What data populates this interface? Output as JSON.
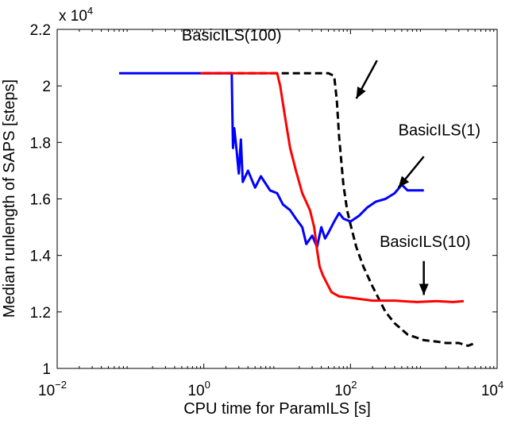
{
  "chart_data": {
    "type": "line",
    "xlabel": "CPU time for ParamILS [s]",
    "ylabel": "Median runlength of SAPS [steps]",
    "xscale": "log",
    "xlim": [
      0.01,
      10000
    ],
    "ylim": [
      10000,
      22000
    ],
    "grid": false,
    "x_tick_labels": [
      {
        "base": "10",
        "exp": "−2"
      },
      {
        "base": "10",
        "exp": "0"
      },
      {
        "base": "10",
        "exp": "2"
      },
      {
        "base": "10",
        "exp": "4"
      }
    ],
    "x_tick_values": [
      0.01,
      1,
      100,
      10000
    ],
    "y_tick_labels": [
      "1",
      "1.2",
      "1.4",
      "1.6",
      "1.8",
      "2",
      "2.2"
    ],
    "y_tick_values": [
      10000,
      12000,
      14000,
      16000,
      18000,
      20000,
      22000
    ],
    "y_multiplier": {
      "base": "x 10",
      "exp": "4"
    },
    "series": [
      {
        "name": "BasicILS(100)",
        "color": "#000000",
        "style": "dashed",
        "points": [
          [
            1,
            20450
          ],
          [
            9,
            20450
          ],
          [
            50,
            20450
          ],
          [
            60,
            20350
          ],
          [
            65,
            19500
          ],
          [
            70,
            18200
          ],
          [
            80,
            16500
          ],
          [
            90,
            15600
          ],
          [
            100,
            15100
          ],
          [
            120,
            14300
          ],
          [
            150,
            13600
          ],
          [
            200,
            12900
          ],
          [
            300,
            12000
          ],
          [
            400,
            11600
          ],
          [
            600,
            11200
          ],
          [
            1000,
            11000
          ],
          [
            1500,
            10950
          ],
          [
            2000,
            10900
          ],
          [
            3000,
            10900
          ],
          [
            4000,
            10800
          ],
          [
            5000,
            10900
          ]
        ]
      },
      {
        "name": "BasicILS(1)",
        "color": "#0000ff",
        "style": "solid",
        "points": [
          [
            0.07,
            20450
          ],
          [
            2.4,
            20450
          ],
          [
            2.45,
            19000
          ],
          [
            2.5,
            17800
          ],
          [
            2.6,
            18500
          ],
          [
            2.8,
            17700
          ],
          [
            3.0,
            16900
          ],
          [
            3.2,
            18100
          ],
          [
            3.4,
            16600
          ],
          [
            4,
            17000
          ],
          [
            5,
            16400
          ],
          [
            6,
            16800
          ],
          [
            8,
            16300
          ],
          [
            10,
            16200
          ],
          [
            12,
            15800
          ],
          [
            15,
            15600
          ],
          [
            18,
            15300
          ],
          [
            22,
            15000
          ],
          [
            25,
            14400
          ],
          [
            30,
            14700
          ],
          [
            35,
            14300
          ],
          [
            40,
            15000
          ],
          [
            45,
            14600
          ],
          [
            50,
            14800
          ],
          [
            60,
            15200
          ],
          [
            70,
            15500
          ],
          [
            80,
            15300
          ],
          [
            100,
            15200
          ],
          [
            130,
            15400
          ],
          [
            170,
            15700
          ],
          [
            220,
            15900
          ],
          [
            300,
            16000
          ],
          [
            400,
            16200
          ],
          [
            500,
            16500
          ],
          [
            600,
            16300
          ],
          [
            700,
            16300
          ],
          [
            1000,
            16300
          ]
        ]
      },
      {
        "name": "BasicILS(10)",
        "color": "#ff0000",
        "style": "solid",
        "points": [
          [
            0.9,
            20450
          ],
          [
            10,
            20450
          ],
          [
            11,
            20000
          ],
          [
            13,
            18800
          ],
          [
            15,
            17800
          ],
          [
            18,
            17000
          ],
          [
            22,
            16200
          ],
          [
            28,
            15600
          ],
          [
            32,
            15000
          ],
          [
            35,
            14200
          ],
          [
            38,
            13600
          ],
          [
            42,
            13300
          ],
          [
            48,
            13000
          ],
          [
            55,
            12700
          ],
          [
            70,
            12550
          ],
          [
            100,
            12500
          ],
          [
            200,
            12400
          ],
          [
            400,
            12400
          ],
          [
            800,
            12350
          ],
          [
            1500,
            12380
          ],
          [
            2500,
            12350
          ],
          [
            3500,
            12380
          ]
        ]
      }
    ],
    "annotations": [
      {
        "text": "BasicILS(100)",
        "label_x": 0.5,
        "label_y": 21600,
        "arrow_from": [
          230,
          20900
        ],
        "arrow_to": [
          120,
          19550
        ]
      },
      {
        "text": "BasicILS(1)",
        "label_x": 450,
        "label_y": 18250,
        "arrow_from": [
          1000,
          17500
        ],
        "arrow_to": [
          450,
          16400
        ]
      },
      {
        "text": "BasicILS(10)",
        "label_x": 250,
        "label_y": 14300,
        "arrow_from": [
          1000,
          13800
        ],
        "arrow_to": [
          1000,
          12600
        ]
      }
    ]
  }
}
